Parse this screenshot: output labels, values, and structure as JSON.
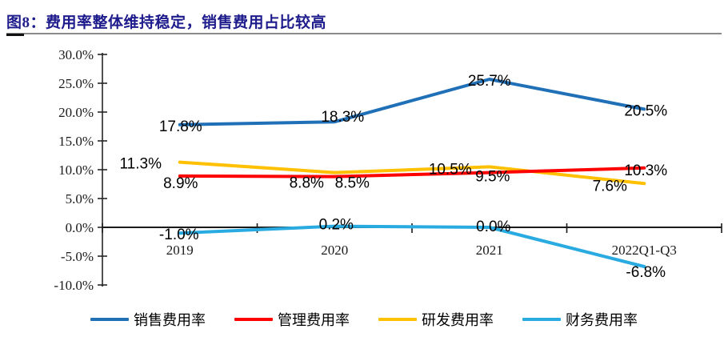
{
  "figure": {
    "title": "图8：费用率整体维持稳定，销售费用占比较高"
  },
  "colors": {
    "title_text": "#1E1C8C",
    "underline": "#8A8A8A",
    "axis": "#262626",
    "data_label": "#000000"
  },
  "chart_data": {
    "type": "line",
    "title": "图8：费用率整体维持稳定，销售费用占比较高",
    "categories": [
      "2019",
      "2020",
      "2021",
      "2022Q1-Q3"
    ],
    "series": [
      {
        "name": "销售费用率",
        "color": "#2070B8",
        "values": [
          17.8,
          18.3,
          25.7,
          20.5
        ],
        "labels": [
          "17.8%",
          "18.3%",
          "25.7%",
          "20.5%"
        ]
      },
      {
        "name": "管理费用率",
        "color": "#FE0000",
        "values": [
          8.9,
          8.8,
          9.5,
          10.3
        ],
        "labels": [
          "8.9%",
          "8.8%",
          "9.5%",
          "10.3%"
        ]
      },
      {
        "name": "研发费用率",
        "color": "#FFC000",
        "values": [
          11.3,
          8.5,
          10.5,
          7.6
        ],
        "labels": [
          "11.3%",
          "8.5%",
          "10.5%",
          "7.6%"
        ]
      },
      {
        "name": "财务费用率",
        "color": "#29ABE2",
        "values": [
          -1.0,
          0.2,
          0.0,
          -6.8
        ],
        "labels": [
          "-1.0%",
          "0.2%",
          "0.0%",
          "-6.8%"
        ]
      }
    ],
    "y_axis": {
      "min": -10,
      "max": 30,
      "tick_step": 5,
      "tick_labels": [
        "30.0%",
        "25.0%",
        "20.0%",
        "15.0%",
        "10.0%",
        "5.0%",
        "0.0%",
        "-5.0%",
        "-10.0%"
      ]
    },
    "grid": false,
    "legend_position": "bottom"
  }
}
